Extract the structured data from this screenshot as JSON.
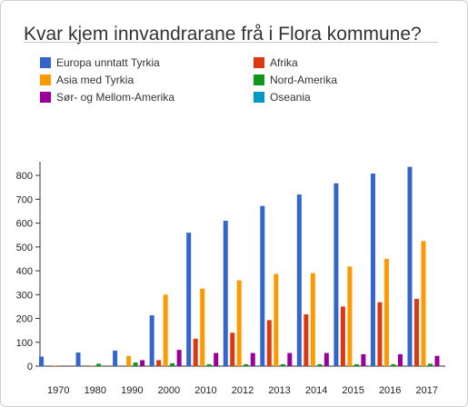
{
  "chart_data": {
    "type": "bar",
    "title": "Kvar kjem innvandrarane frå i Flora kommune?",
    "categories": [
      "1970",
      "1980",
      "1990",
      "2000",
      "2010",
      "2012",
      "2013",
      "2014",
      "2015",
      "2016",
      "2017"
    ],
    "series": [
      {
        "name": "Europa unntatt Tyrkia",
        "color": "#3366cc",
        "values": [
          40,
          57,
          65,
          213,
          560,
          610,
          672,
          720,
          767,
          808,
          836
        ]
      },
      {
        "name": "Afrika",
        "color": "#dc3912",
        "values": [
          0,
          0,
          0,
          25,
          115,
          140,
          193,
          217,
          250,
          268,
          282
        ]
      },
      {
        "name": "Asia med Tyrkia",
        "color": "#ff9900",
        "values": [
          3,
          3,
          43,
          300,
          325,
          360,
          387,
          390,
          418,
          450,
          525
        ]
      },
      {
        "name": "Nord-Amerika",
        "color": "#109618",
        "values": [
          0,
          10,
          15,
          12,
          8,
          8,
          8,
          8,
          8,
          8,
          10
        ]
      },
      {
        "name": "Sør- og Mellom-Amerika",
        "color": "#990099",
        "values": [
          0,
          0,
          25,
          68,
          55,
          55,
          55,
          55,
          50,
          50,
          43
        ]
      },
      {
        "name": "Oseania",
        "color": "#0099c6",
        "values": [
          0,
          0,
          0,
          0,
          0,
          0,
          0,
          0,
          0,
          0,
          0
        ]
      }
    ],
    "ylim": [
      0,
      850
    ],
    "yticks": [
      0,
      100,
      200,
      300,
      400,
      500,
      600,
      700,
      800
    ],
    "grid": false,
    "legend_position": "top"
  }
}
